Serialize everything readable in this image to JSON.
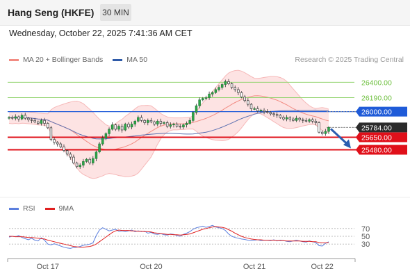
{
  "header": {
    "instrument": "Hang Seng (HKFE)",
    "timeframe": "30 MIN"
  },
  "datetime": "Wednesday, October 22, 2025 7:41:36 AM CET",
  "legend": {
    "items": [
      {
        "label": "MA 20 + Bollinger Bands",
        "color": "#f28b82"
      },
      {
        "label": "MA 50",
        "color": "#2e5aa8"
      }
    ]
  },
  "credit": "Research © 2025 Trading Central",
  "rsi_legend": {
    "items": [
      {
        "label": "RSI",
        "color": "#5b7fde"
      },
      {
        "label": "9MA",
        "color": "#e02020"
      }
    ]
  },
  "chart_data": [
    {
      "type": "candlestick",
      "title": "Hang Seng (HKFE)",
      "ylim": [
        24850,
        26650
      ],
      "x_labels": [
        "Oct 17",
        "Oct 20",
        "Oct 21",
        "Oct 22"
      ],
      "levels": [
        {
          "value": 26400.0,
          "label": "26400.00",
          "kind": "resistance",
          "color": "#8fd36b"
        },
        {
          "value": 26190.0,
          "label": "26190.00",
          "kind": "resistance",
          "color": "#8fd36b"
        },
        {
          "value": 26000.0,
          "label": "26000.00",
          "kind": "pivot",
          "color": "#1f5bd8"
        },
        {
          "value": 25784.0,
          "label": "25784.00",
          "kind": "last",
          "color": "#2b2b2b"
        },
        {
          "value": 25650.0,
          "label": "25650.00",
          "kind": "support",
          "color": "#e0101a"
        },
        {
          "value": 25480.0,
          "label": "25480.00",
          "kind": "support",
          "color": "#e0101a"
        }
      ],
      "closes": [
        25920,
        25910,
        25930,
        25900,
        25950,
        25910,
        25890,
        25880,
        25860,
        25840,
        25880,
        25840,
        25780,
        25620,
        25580,
        25560,
        25520,
        25470,
        25420,
        25380,
        25300,
        25250,
        25270,
        25320,
        25350,
        25300,
        25360,
        25450,
        25560,
        25640,
        25700,
        25760,
        25820,
        25760,
        25800,
        25750,
        25830,
        25790,
        25830,
        25870,
        25920,
        25880,
        25850,
        25880,
        25860,
        25830,
        25870,
        25840,
        25850,
        25800,
        25820,
        25830,
        25800,
        25790,
        25820,
        25840,
        25880,
        25990,
        26080,
        26160,
        26180,
        26190,
        26240,
        26260,
        26300,
        26330,
        26370,
        26410,
        26380,
        26330,
        26300,
        26260,
        26200,
        26150,
        26100,
        26040,
        26040,
        26010,
        26020,
        26000,
        25990,
        25970,
        25960,
        25950,
        25920,
        25900,
        25920,
        25900,
        25880,
        25910,
        25890,
        25880,
        25870,
        25890,
        25870,
        25850,
        25720,
        25700,
        25730,
        25784
      ],
      "forecast_arrow": {
        "from": 25784,
        "to": 25480
      }
    },
    {
      "type": "line",
      "title": "RSI",
      "ylim": [
        0,
        100
      ],
      "ticks": [
        70,
        50,
        30
      ],
      "series": [
        {
          "name": "RSI",
          "color": "#5b7fde",
          "values": [
            48,
            50,
            49,
            52,
            47,
            44,
            41,
            45,
            40,
            38,
            46,
            40,
            30,
            28,
            31,
            28,
            25,
            22,
            20,
            19,
            21,
            22,
            24,
            27,
            28,
            30,
            33,
            52,
            66,
            72,
            68,
            64,
            66,
            68,
            63,
            64,
            62,
            64,
            66,
            62,
            64,
            62,
            63,
            58,
            60,
            56,
            55,
            57,
            54,
            53,
            56,
            55,
            52,
            50,
            55,
            58,
            62,
            68,
            72,
            74,
            76,
            73,
            75,
            78,
            74,
            72,
            70,
            65,
            56,
            50,
            47,
            45,
            43,
            42,
            40,
            39,
            40,
            41,
            39,
            40,
            40,
            39,
            41,
            38,
            40,
            39,
            37,
            36,
            38,
            40,
            38,
            36,
            35,
            38,
            36,
            34,
            26,
            25,
            32,
            36
          ]
        },
        {
          "name": "9MA",
          "color": "#e02020",
          "values": [
            50,
            50,
            49,
            49,
            49,
            48,
            47,
            47,
            46,
            45,
            44,
            43,
            40,
            38,
            36,
            34,
            32,
            30,
            28,
            26,
            24,
            23,
            22,
            22,
            23,
            24,
            26,
            30,
            36,
            42,
            48,
            54,
            60,
            64,
            66,
            65,
            65,
            65,
            64,
            64,
            63,
            63,
            62,
            62,
            61,
            59,
            58,
            57,
            56,
            55,
            55,
            54,
            54,
            53,
            54,
            55,
            56,
            59,
            62,
            65,
            68,
            70,
            72,
            74,
            75,
            74,
            73,
            71,
            67,
            63,
            58,
            54,
            50,
            47,
            45,
            43,
            42,
            41,
            41,
            40,
            40,
            40,
            40,
            39,
            39,
            39,
            38,
            38,
            38,
            38,
            38,
            37,
            37,
            37,
            36,
            36,
            34,
            33,
            33,
            34
          ]
        }
      ]
    }
  ]
}
